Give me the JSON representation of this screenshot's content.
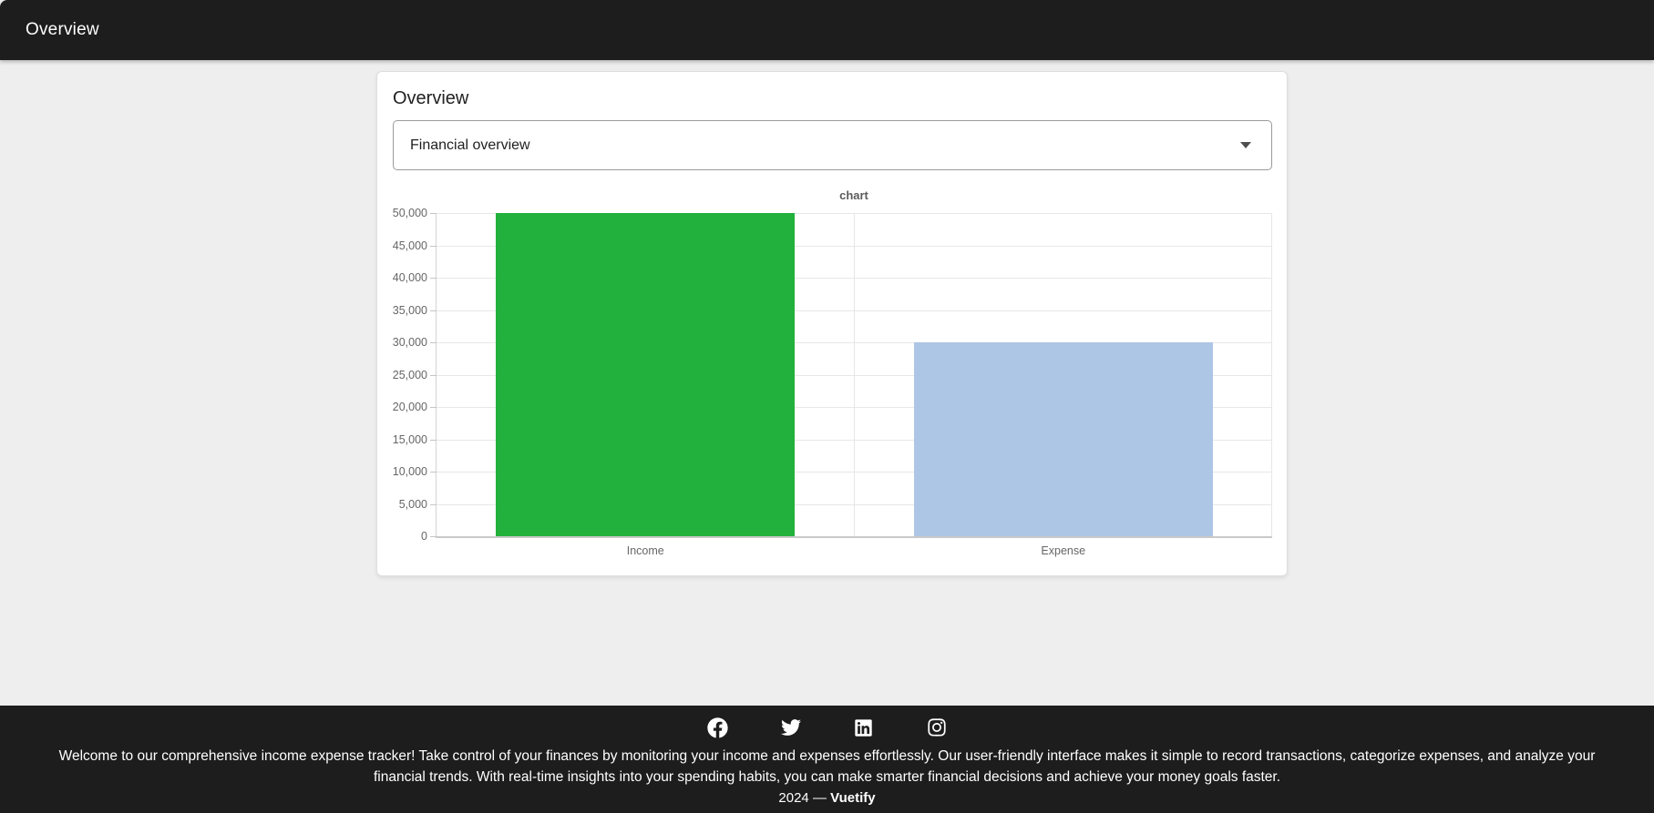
{
  "app_bar": {
    "title": "Overview"
  },
  "card": {
    "title": "Overview",
    "select": {
      "value": "Financial overview"
    }
  },
  "chart_data": {
    "type": "bar",
    "title": "chart",
    "categories": [
      "Income",
      "Expense"
    ],
    "values": [
      50000,
      30000
    ],
    "colors": [
      "#22b13c",
      "#aec6e5"
    ],
    "ylim": [
      0,
      50000
    ],
    "y_step": 5000,
    "y_tick_labels": [
      "0",
      "5,000",
      "10,000",
      "15,000",
      "20,000",
      "25,000",
      "30,000",
      "35,000",
      "40,000",
      "45,000",
      "50,000"
    ],
    "grid": true,
    "legend": "none",
    "bar_fraction": 0.715
  },
  "footer": {
    "social_icons": [
      "facebook-icon",
      "twitter-icon",
      "linkedin-icon",
      "instagram-icon"
    ],
    "blurb": "Welcome to our comprehensive income expense tracker! Take control of your finances by monitoring your income and expenses effortlessly. Our user-friendly interface makes it simple to record transactions, categorize expenses, and analyze your financial trends. With real-time insights into your spending habits, you can make smarter financial decisions and achieve your money goals faster.",
    "copyright_prefix": "2024 —",
    "brand": "Vuetify"
  }
}
